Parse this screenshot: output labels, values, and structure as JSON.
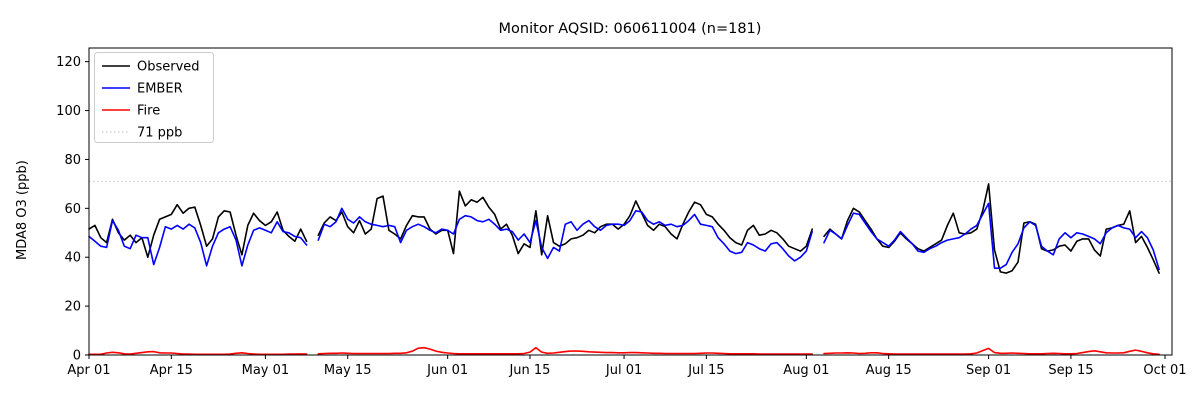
{
  "chart_data": {
    "type": "line",
    "title": "Monitor AQSID: 060611004 (n=181)",
    "ylabel": "MDA8 O3 (ppb)",
    "xlabel": "",
    "n_label": "n=181",
    "ylim": [
      0,
      126
    ],
    "yticks": [
      0,
      20,
      40,
      60,
      80,
      100,
      120
    ],
    "x_unit": "days from Apr 01",
    "x_range_days": 183,
    "xticks": [
      {
        "label": "Apr 01",
        "day": 0
      },
      {
        "label": "Apr 15",
        "day": 14
      },
      {
        "label": "May 01",
        "day": 30
      },
      {
        "label": "May 15",
        "day": 44
      },
      {
        "label": "Jun 01",
        "day": 61
      },
      {
        "label": "Jun 15",
        "day": 75
      },
      {
        "label": "Jul 01",
        "day": 91
      },
      {
        "label": "Jul 15",
        "day": 105
      },
      {
        "label": "Aug 01",
        "day": 122
      },
      {
        "label": "Aug 15",
        "day": 136
      },
      {
        "label": "Sep 01",
        "day": 153
      },
      {
        "label": "Sep 15",
        "day": 167
      },
      {
        "label": "Oct 01",
        "day": 183
      }
    ],
    "threshold": {
      "label": "71 ppb",
      "value": 71,
      "color": "#d3d3d3",
      "style": "dotted"
    },
    "legend_position": "upper left",
    "grid": false,
    "series": [
      {
        "name": "Observed",
        "color": "#000000",
        "values": [
          51.5,
          53,
          48,
          46,
          55.5,
          50,
          47,
          49,
          46,
          48,
          40,
          49,
          55.5,
          56.5,
          57.5,
          61.5,
          58,
          60,
          60.5,
          53,
          44.5,
          47.5,
          56.5,
          59,
          58.5,
          49,
          41,
          53,
          58,
          55,
          53,
          54.5,
          58.5,
          51,
          48.5,
          46.5,
          51.5,
          46.5,
          null,
          49,
          54,
          56.5,
          55,
          58.5,
          52.5,
          50,
          55,
          49.5,
          51.5,
          64,
          65,
          51,
          49.5,
          47.5,
          53,
          57,
          56.5,
          56.5,
          51.5,
          49.5,
          51,
          51,
          41.5,
          67,
          61,
          63.5,
          62.5,
          64.5,
          60.5,
          57.5,
          51.5,
          53.5,
          49,
          41.5,
          45.5,
          44,
          59,
          41,
          57,
          46,
          44.5,
          45.5,
          47.5,
          48,
          49,
          51,
          50,
          52.5,
          53.5,
          53.5,
          51.5,
          53.5,
          57,
          63,
          58,
          53,
          51,
          53.5,
          52.5,
          49.5,
          47.5,
          53.5,
          58.5,
          62.5,
          61.5,
          57.5,
          56.5,
          53.5,
          51,
          48,
          46,
          45,
          51,
          53,
          49,
          49.5,
          51,
          50,
          47.5,
          44.5,
          43.5,
          42.5,
          44.5,
          51.5,
          null,
          48.5,
          51.5,
          49.5,
          47.5,
          55,
          60,
          58.5,
          55,
          51.5,
          47.5,
          44.5,
          44,
          46.5,
          50,
          47.5,
          45.5,
          43.5,
          42.5,
          44,
          45.5,
          47,
          53,
          58,
          50,
          49.5,
          50,
          51.5,
          59,
          70,
          43,
          34,
          33.5,
          34.5,
          38,
          54,
          54.5,
          53.5,
          43.5,
          42.5,
          43,
          44.5,
          45,
          42.5,
          46.5,
          47.5,
          47.5,
          43,
          40.5,
          51.5,
          52,
          53,
          53.5,
          59,
          46,
          48.5,
          44,
          39,
          33.5
        ]
      },
      {
        "name": "EMBER",
        "color": "#0000ff",
        "values": [
          48.5,
          46.5,
          44.5,
          44,
          55,
          51,
          44.5,
          43.5,
          49,
          48,
          48,
          37,
          44,
          52.5,
          51.5,
          53,
          51.5,
          53.5,
          52,
          46,
          36.5,
          44.5,
          50,
          51.5,
          52.5,
          47,
          36.5,
          45,
          51,
          52,
          51,
          50,
          54.5,
          50.5,
          50,
          48.5,
          48,
          45,
          null,
          47,
          53.5,
          52.5,
          54.5,
          60,
          55.5,
          54,
          56.5,
          54.5,
          53.5,
          53,
          52.5,
          53,
          52.5,
          46,
          51,
          52.5,
          53.5,
          52.5,
          51,
          50,
          51.5,
          51,
          49.5,
          55.5,
          57,
          56.5,
          55,
          54.5,
          55.5,
          53.5,
          51,
          51.5,
          50.5,
          47,
          49.5,
          46,
          55,
          44,
          39.5,
          44,
          42.5,
          53.5,
          54.5,
          51,
          53.5,
          55,
          52.5,
          51,
          53,
          53.5,
          53.5,
          53,
          55,
          59,
          58.5,
          55,
          53.5,
          54.5,
          53,
          53.5,
          52.5,
          53,
          55,
          57.5,
          53.5,
          53,
          52.5,
          48,
          45.5,
          42.5,
          41.5,
          42,
          46,
          45,
          43.5,
          42.5,
          45.5,
          46,
          43.5,
          40.5,
          38.5,
          40,
          42.5,
          50.5,
          null,
          46,
          51,
          49.5,
          47.5,
          53,
          58,
          57.5,
          54,
          50.5,
          47.5,
          46,
          44.5,
          47,
          50.5,
          48,
          45.5,
          42.5,
          42,
          43.5,
          44.5,
          46,
          47,
          47.5,
          48,
          49.5,
          51.5,
          53,
          57.5,
          62,
          35.5,
          35.5,
          37,
          42,
          45.5,
          52,
          54.5,
          53,
          44.5,
          42.5,
          41,
          47.5,
          50,
          48,
          50,
          49.5,
          48.5,
          47.5,
          45.5,
          50,
          52,
          53,
          52,
          51.5,
          48,
          50.5,
          48,
          43,
          35
        ]
      },
      {
        "name": "Fire",
        "color": "#ff0000",
        "values": [
          0.3,
          0.3,
          0.3,
          0.8,
          1.1,
          0.9,
          0.5,
          0.4,
          0.7,
          1.0,
          1.3,
          1.4,
          0.9,
          0.8,
          0.8,
          0.6,
          0.4,
          0.35,
          0.3,
          0.3,
          0.3,
          0.3,
          0.3,
          0.3,
          0.4,
          0.7,
          0.9,
          0.6,
          0.4,
          0.3,
          0.3,
          0.3,
          0.3,
          0.3,
          0.35,
          0.4,
          0.45,
          0.4,
          null,
          0.5,
          0.6,
          0.7,
          0.7,
          0.8,
          0.7,
          0.6,
          0.6,
          0.6,
          0.6,
          0.6,
          0.6,
          0.6,
          0.7,
          0.7,
          0.9,
          1.6,
          2.8,
          3.0,
          2.4,
          1.6,
          1.1,
          0.8,
          0.6,
          0.5,
          0.5,
          0.5,
          0.5,
          0.5,
          0.5,
          0.5,
          0.5,
          0.5,
          0.5,
          0.5,
          0.6,
          1.2,
          3.0,
          1.2,
          0.7,
          0.8,
          1.1,
          1.4,
          1.6,
          1.6,
          1.5,
          1.3,
          1.2,
          1.1,
          1.0,
          1.0,
          0.9,
          0.9,
          1.0,
          1.0,
          0.9,
          0.8,
          0.7,
          0.7,
          0.6,
          0.6,
          0.6,
          0.6,
          0.6,
          0.6,
          0.7,
          0.8,
          0.8,
          0.7,
          0.6,
          0.5,
          0.5,
          0.5,
          0.5,
          0.5,
          0.4,
          0.4,
          0.4,
          0.4,
          0.4,
          0.4,
          0.4,
          0.4,
          0.4,
          0.4,
          null,
          0.6,
          0.7,
          0.8,
          0.8,
          0.9,
          0.8,
          0.6,
          0.7,
          0.9,
          0.9,
          0.6,
          0.5,
          0.4,
          0.4,
          0.4,
          0.4,
          0.4,
          0.4,
          0.4,
          0.4,
          0.4,
          0.4,
          0.4,
          0.4,
          0.4,
          0.5,
          0.8,
          1.8,
          2.7,
          1.0,
          0.7,
          0.7,
          0.8,
          0.7,
          0.6,
          0.5,
          0.5,
          0.5,
          0.6,
          0.7,
          0.6,
          0.5,
          0.5,
          0.6,
          1.0,
          1.4,
          1.7,
          1.3,
          0.9,
          0.8,
          0.8,
          0.9,
          1.5,
          2.0,
          1.5,
          0.9,
          0.5,
          0.3
        ]
      }
    ]
  },
  "legend": {
    "items": [
      {
        "label": "Observed"
      },
      {
        "label": "EMBER"
      },
      {
        "label": "Fire"
      },
      {
        "label": "71 ppb"
      }
    ]
  }
}
